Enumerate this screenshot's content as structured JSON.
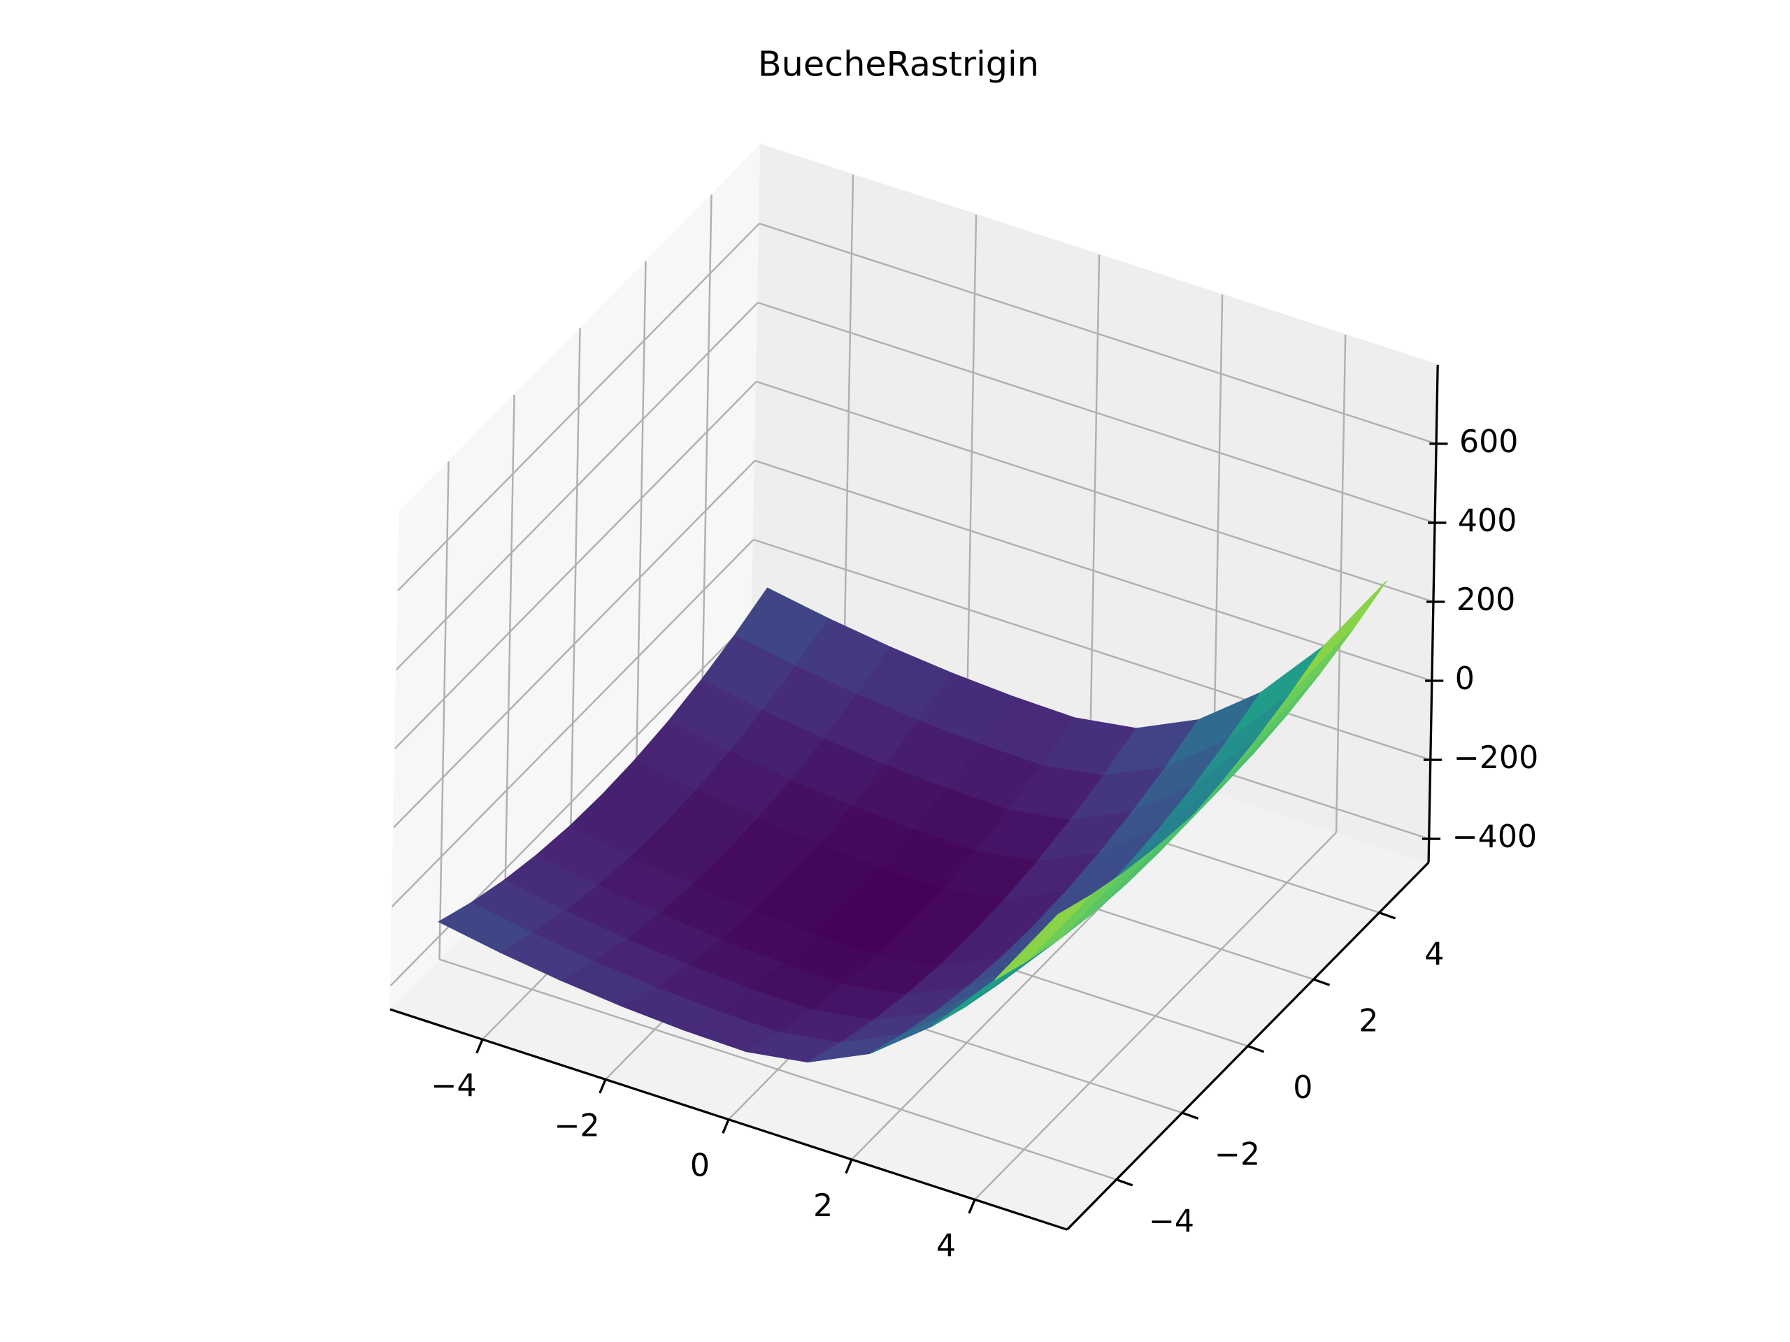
{
  "chart_data": {
    "type": "surface3d",
    "title": "BuecheRastrigin",
    "colormap": "viridis",
    "x": [
      -5,
      -4,
      -3,
      -2,
      -1,
      0,
      1,
      2,
      3,
      4,
      5
    ],
    "y": [
      -5,
      -4,
      -3,
      -2,
      -1,
      0,
      1,
      2,
      3,
      4,
      5
    ],
    "z": [
      [
        -255,
        -282,
        -303,
        -318,
        -327,
        -330,
        -306,
        -234,
        -114,
        54,
        270
      ],
      [
        -291,
        -318,
        -339,
        -354,
        -363,
        -366,
        -342,
        -270,
        -150,
        18,
        234
      ],
      [
        -319,
        -346,
        -367,
        -382,
        -391,
        -394,
        -370,
        -298,
        -178,
        -10,
        206
      ],
      [
        -339,
        -366,
        -387,
        -402,
        -411,
        -414,
        -390,
        -318,
        -198,
        -30,
        186
      ],
      [
        -351,
        -378,
        -399,
        -414,
        -423,
        -426,
        -402,
        -330,
        -210,
        -42,
        174
      ],
      [
        -355,
        -382,
        -403,
        -418,
        -427,
        -430,
        -406,
        -334,
        -214,
        -46,
        170
      ],
      [
        -351,
        -378,
        -399,
        -414,
        -423,
        -426,
        -402,
        -330,
        -210,
        -42,
        174
      ],
      [
        -339,
        -366,
        -387,
        -402,
        -411,
        -414,
        -390,
        -318,
        -198,
        -30,
        186
      ],
      [
        -319,
        -346,
        -367,
        -382,
        -391,
        -394,
        -370,
        -298,
        -178,
        -10,
        206
      ],
      [
        -291,
        -318,
        -339,
        -354,
        -363,
        -366,
        -342,
        -270,
        -150,
        18,
        234
      ],
      [
        -255,
        -282,
        -303,
        -318,
        -327,
        -330,
        -306,
        -234,
        -114,
        54,
        270
      ]
    ],
    "xlim": [
      -5.5,
      5.5
    ],
    "ylim": [
      -5.5,
      5.5
    ],
    "zlim": [
      -460,
      800
    ],
    "xticks": [
      {
        "value": -4,
        "label": "−4"
      },
      {
        "value": -2,
        "label": "−2"
      },
      0,
      2,
      4
    ],
    "yticks": [
      {
        "value": -4,
        "label": "−4"
      },
      {
        "value": -2,
        "label": "−2"
      },
      0,
      2,
      4
    ],
    "zticks": [
      {
        "value": -400,
        "label": "−400"
      },
      {
        "value": -200,
        "label": "−200"
      },
      0,
      200,
      400,
      600
    ],
    "grid": true
  }
}
